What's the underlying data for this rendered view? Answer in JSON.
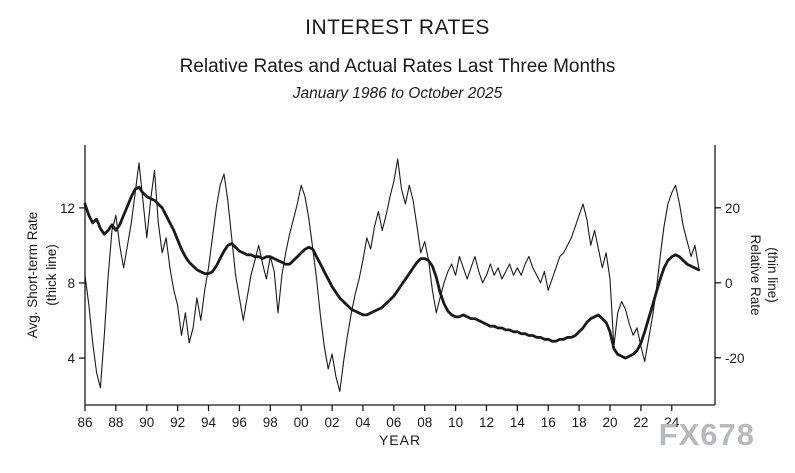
{
  "chart_data": {
    "type": "line",
    "title": "INTEREST RATES",
    "subtitle": "Relative Rates and Actual Rates Last Three Months",
    "date_range": "January 1986 to October 2025",
    "watermark": "FX678",
    "line_color": "#1a1a1a",
    "grid": false,
    "legend": "none (series identified by axis sublabels)",
    "x_start": 1986.0,
    "x_step": 0.25,
    "x_axis": {
      "label": "YEAR",
      "xlim": [
        1986,
        2026.8
      ],
      "ticks": [
        1986,
        1988,
        1990,
        1992,
        1994,
        1996,
        1998,
        2000,
        2002,
        2004,
        2006,
        2008,
        2010,
        2012,
        2014,
        2016,
        2018,
        2020,
        2022,
        2024
      ],
      "tick_labels": [
        "86",
        "88",
        "90",
        "92",
        "94",
        "96",
        "98",
        "00",
        "02",
        "04",
        "06",
        "08",
        "10",
        "12",
        "14",
        "16",
        "18",
        "20",
        "22",
        "24"
      ]
    },
    "left_axis": {
      "label": "Avg. Short-term Rate",
      "sublabel": "(thick line)",
      "ticks": [
        4,
        8,
        12
      ],
      "tick_labels": [
        "4",
        "8",
        "12"
      ],
      "ylim": [
        1.5,
        15.35
      ]
    },
    "right_axis": {
      "label": "Relative Rate",
      "sublabel": "(thin line)",
      "ticks": [
        -20,
        0,
        20
      ],
      "tick_labels": [
        "-20",
        "0",
        "20"
      ],
      "ylim": [
        -32.6,
        36.75
      ]
    },
    "series": [
      {
        "id": "avg-short-term-rate",
        "name": "Avg. Short-term Rate",
        "axis": "left",
        "line": "thick",
        "values": [
          12.2,
          11.6,
          11.2,
          11.4,
          10.9,
          10.6,
          10.8,
          11.1,
          10.8,
          11.1,
          11.6,
          12.1,
          12.6,
          13.0,
          13.1,
          12.8,
          12.6,
          12.5,
          12.4,
          12.2,
          12.0,
          11.6,
          11.2,
          10.8,
          10.3,
          9.8,
          9.4,
          9.1,
          8.9,
          8.7,
          8.6,
          8.5,
          8.5,
          8.6,
          8.9,
          9.3,
          9.7,
          10.0,
          10.1,
          9.9,
          9.7,
          9.6,
          9.5,
          9.5,
          9.4,
          9.4,
          9.3,
          9.4,
          9.4,
          9.3,
          9.2,
          9.1,
          9.0,
          9.0,
          9.2,
          9.4,
          9.6,
          9.8,
          9.9,
          9.8,
          9.4,
          9.0,
          8.6,
          8.2,
          7.8,
          7.5,
          7.2,
          7.0,
          6.8,
          6.6,
          6.5,
          6.4,
          6.3,
          6.3,
          6.4,
          6.5,
          6.6,
          6.7,
          6.9,
          7.1,
          7.3,
          7.6,
          7.9,
          8.2,
          8.5,
          8.8,
          9.1,
          9.3,
          9.3,
          9.2,
          8.9,
          8.3,
          7.5,
          6.9,
          6.5,
          6.3,
          6.2,
          6.2,
          6.3,
          6.2,
          6.1,
          6.1,
          6.0,
          5.9,
          5.8,
          5.7,
          5.7,
          5.6,
          5.6,
          5.5,
          5.5,
          5.4,
          5.4,
          5.3,
          5.3,
          5.2,
          5.2,
          5.1,
          5.1,
          5.0,
          5.0,
          4.9,
          4.9,
          5.0,
          5.0,
          5.1,
          5.1,
          5.2,
          5.4,
          5.6,
          5.9,
          6.1,
          6.2,
          6.3,
          6.1,
          5.9,
          5.4,
          4.5,
          4.2,
          4.1,
          4.0,
          4.1,
          4.2,
          4.4,
          4.8,
          5.4,
          6.1,
          6.8,
          7.5,
          8.2,
          8.8,
          9.2,
          9.4,
          9.5,
          9.4,
          9.2,
          9.0,
          8.9,
          8.8,
          8.7
        ]
      },
      {
        "id": "relative-rate",
        "name": "Relative Rate",
        "axis": "right",
        "line": "thin",
        "values": [
          2,
          -6,
          -16,
          -24,
          -28,
          -14,
          2,
          14,
          18,
          10,
          4,
          10,
          16,
          24,
          32,
          22,
          12,
          22,
          30,
          16,
          8,
          12,
          4,
          -2,
          -6,
          -14,
          -8,
          -16,
          -12,
          -4,
          -10,
          -2,
          4,
          12,
          20,
          26,
          29,
          22,
          12,
          2,
          -4,
          -10,
          -4,
          2,
          6,
          10,
          5,
          1,
          7,
          3,
          -8,
          2,
          8,
          13,
          17,
          21,
          26,
          23,
          17,
          9,
          1,
          -9,
          -17,
          -23,
          -19,
          -25,
          -29,
          -21,
          -14,
          -8,
          -3,
          1,
          6,
          12,
          9,
          15,
          19,
          14,
          18,
          23,
          27,
          33,
          25,
          21,
          26,
          22,
          15,
          8,
          11,
          6,
          -2,
          -8,
          -4,
          0,
          3,
          5,
          2,
          7,
          4,
          1,
          4,
          7,
          3,
          0,
          2,
          5,
          2,
          4,
          1,
          3,
          5,
          2,
          4,
          2,
          5,
          7,
          4,
          2,
          0,
          3,
          -2,
          1,
          4,
          7,
          8,
          10,
          12,
          15,
          18,
          21,
          17,
          10,
          14,
          9,
          4,
          8,
          1,
          -17,
          -8,
          -5,
          -7,
          -11,
          -14,
          -12,
          -17,
          -21,
          -15,
          -9,
          -2,
          7,
          15,
          21,
          24,
          26,
          21,
          15,
          11,
          7,
          10,
          4
        ]
      }
    ]
  }
}
